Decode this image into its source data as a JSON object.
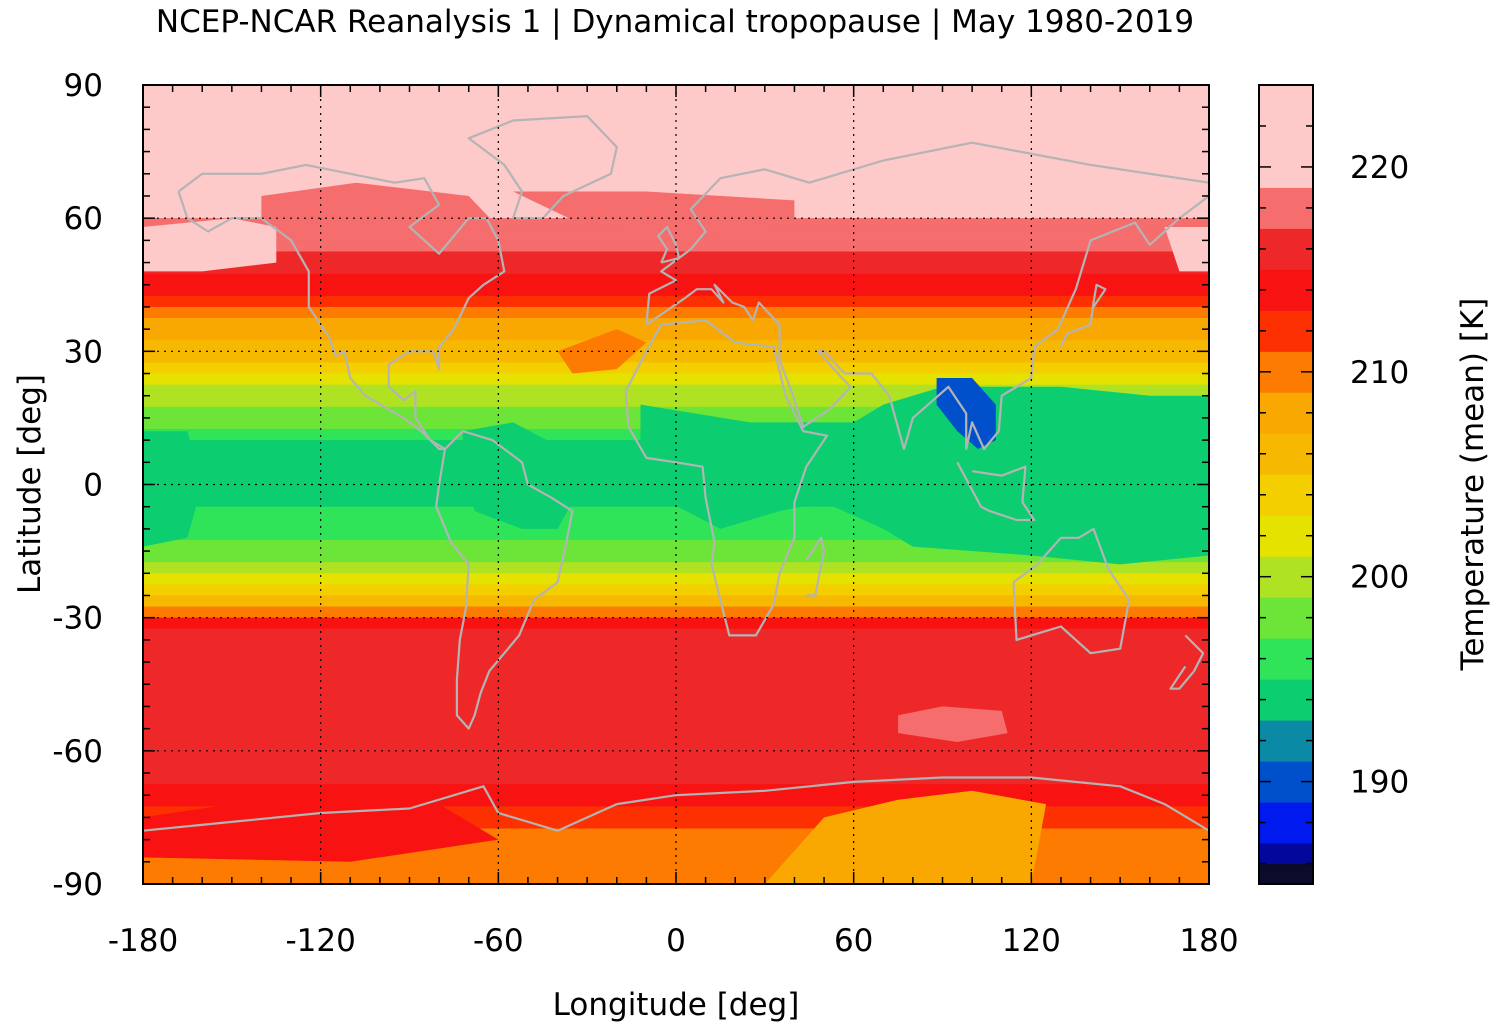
{
  "chart_data": {
    "type": "heatmap",
    "title": "NCEP-NCAR Reanalysis 1 | Dynamical tropopause | May 1980-2019",
    "xlabel": "Longitude [deg]",
    "ylabel": "Latitude [deg]",
    "xlim": [
      -180,
      180
    ],
    "ylim": [
      -90,
      90
    ],
    "xticks": [
      -180,
      -120,
      -60,
      0,
      60,
      120,
      180
    ],
    "yticks": [
      90,
      60,
      30,
      0,
      -30,
      -60,
      -90
    ],
    "grid": true,
    "colorbar": {
      "label": "Temperature (mean) [K]",
      "range": [
        185,
        224
      ],
      "ticks": [
        190,
        200,
        210,
        220
      ],
      "levels": [
        {
          "from": 185,
          "to": 186,
          "color": "#0b0b2b"
        },
        {
          "from": 186,
          "to": 187,
          "color": "#03079b"
        },
        {
          "from": 187,
          "to": 189,
          "color": "#0019ee"
        },
        {
          "from": 189,
          "to": 191,
          "color": "#0050cc"
        },
        {
          "from": 191,
          "to": 193,
          "color": "#0a8aa5"
        },
        {
          "from": 193,
          "to": 195,
          "color": "#0ccd70"
        },
        {
          "from": 195,
          "to": 197,
          "color": "#30e45a"
        },
        {
          "from": 197,
          "to": 199,
          "color": "#6de438"
        },
        {
          "from": 199,
          "to": 201,
          "color": "#b0e224"
        },
        {
          "from": 201,
          "to": 203,
          "color": "#e6e200"
        },
        {
          "from": 203,
          "to": 205,
          "color": "#f4cf00"
        },
        {
          "from": 205,
          "to": 207,
          "color": "#f6b800"
        },
        {
          "from": 207,
          "to": 209,
          "color": "#f8a800"
        },
        {
          "from": 209,
          "to": 211,
          "color": "#fc7b00"
        },
        {
          "from": 211,
          "to": 213,
          "color": "#fc3000"
        },
        {
          "from": 213,
          "to": 215,
          "color": "#f81212"
        },
        {
          "from": 215,
          "to": 217,
          "color": "#ee2828"
        },
        {
          "from": 217,
          "to": 219,
          "color": "#f56d6d"
        },
        {
          "from": 219,
          "to": 224,
          "color": "#fdc9c9"
        }
      ]
    },
    "zonal_mean_temperature_K": {
      "latitude": [
        90,
        80,
        70,
        60,
        50,
        45,
        40,
        35,
        30,
        25,
        20,
        15,
        10,
        5,
        0,
        -5,
        -10,
        -15,
        -20,
        -25,
        -30,
        -35,
        -40,
        -50,
        -60,
        -65,
        -70,
        -75,
        -80,
        -85,
        -90
      ],
      "temperature": [
        220.5,
        220.5,
        220,
        219,
        216,
        214,
        211,
        208,
        206,
        203,
        200,
        198,
        195,
        194,
        194,
        195,
        196,
        198,
        200,
        204,
        212,
        216,
        216,
        216,
        217,
        216,
        214,
        212,
        210,
        210,
        209
      ]
    },
    "annotations": [
      "coastlines (grey)"
    ]
  }
}
